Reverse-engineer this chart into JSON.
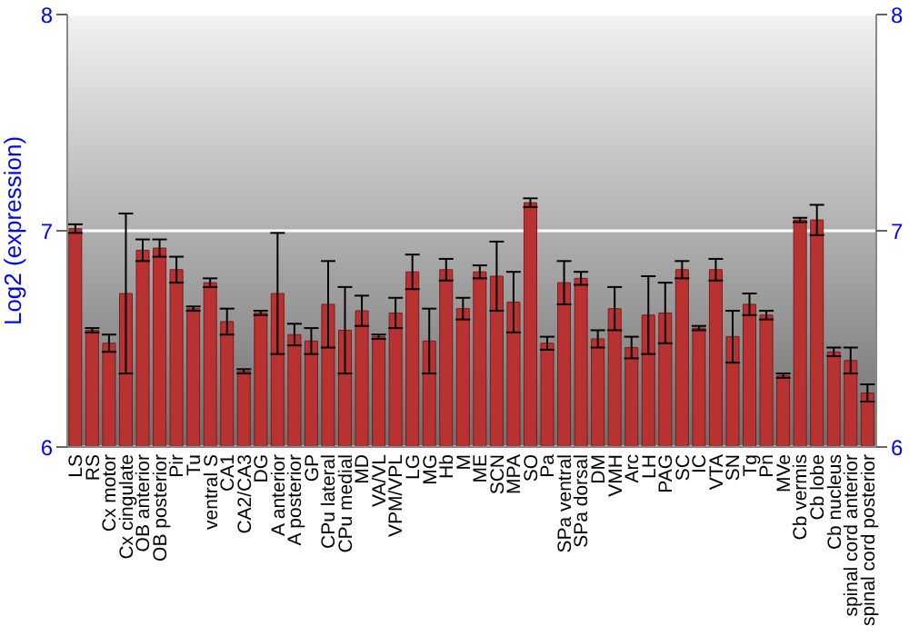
{
  "chart_data": {
    "type": "bar",
    "ylabel": "Log2 (expression)",
    "categories": [
      "LS",
      "RS",
      "Cx motor",
      "Cx cingulate",
      "OB anterior",
      "OB posterior",
      "Pir",
      "Tu",
      "ventral S",
      "CA1",
      "CA2/CA3",
      "DG",
      "A anterior",
      "A posterior",
      "GP",
      "CPu lateral",
      "CPu medial",
      "MD",
      "VA/VL",
      "VPM/VPL",
      "LG",
      "MG",
      "Hb",
      "M",
      "ME",
      "SCN",
      "MPA",
      "SO",
      "Pa",
      "SPa ventral",
      "SPa dorsal",
      "DM",
      "VMH",
      "Arc",
      "LH",
      "PAG",
      "SC",
      "IC",
      "VTA",
      "SN",
      "Tg",
      "Pn",
      "MVe",
      "Cb vermis",
      "Cb lobe",
      "Cb nucleus",
      "spinal cord anterior",
      "spinal cord posterior"
    ],
    "values": [
      7.01,
      6.54,
      6.48,
      6.71,
      6.91,
      6.92,
      6.82,
      6.64,
      6.76,
      6.58,
      6.35,
      6.62,
      6.71,
      6.52,
      6.49,
      6.66,
      6.54,
      6.63,
      6.51,
      6.62,
      6.81,
      6.49,
      6.82,
      6.64,
      6.81,
      6.79,
      6.67,
      7.13,
      6.48,
      6.76,
      6.78,
      6.5,
      6.64,
      6.46,
      6.61,
      6.62,
      6.82,
      6.55,
      6.82,
      6.51,
      6.66,
      6.61,
      6.33,
      7.05,
      7.05,
      6.44,
      6.4,
      6.25
    ],
    "errors": [
      0.02,
      0.01,
      0.04,
      0.37,
      0.05,
      0.04,
      0.06,
      0.01,
      0.02,
      0.06,
      0.01,
      0.01,
      0.28,
      0.05,
      0.06,
      0.2,
      0.2,
      0.07,
      0.01,
      0.07,
      0.08,
      0.15,
      0.05,
      0.05,
      0.03,
      0.16,
      0.14,
      0.02,
      0.03,
      0.1,
      0.03,
      0.04,
      0.1,
      0.05,
      0.18,
      0.14,
      0.04,
      0.01,
      0.05,
      0.12,
      0.05,
      0.02,
      0.01,
      0.01,
      0.07,
      0.02,
      0.06,
      0.04
    ],
    "color": "#b83232",
    "ylim": [
      6,
      8
    ],
    "yticks": [
      6,
      7,
      8
    ],
    "y2lim": [
      6,
      8
    ],
    "y2ticks": [
      6,
      7,
      8
    ],
    "grid": "y"
  }
}
